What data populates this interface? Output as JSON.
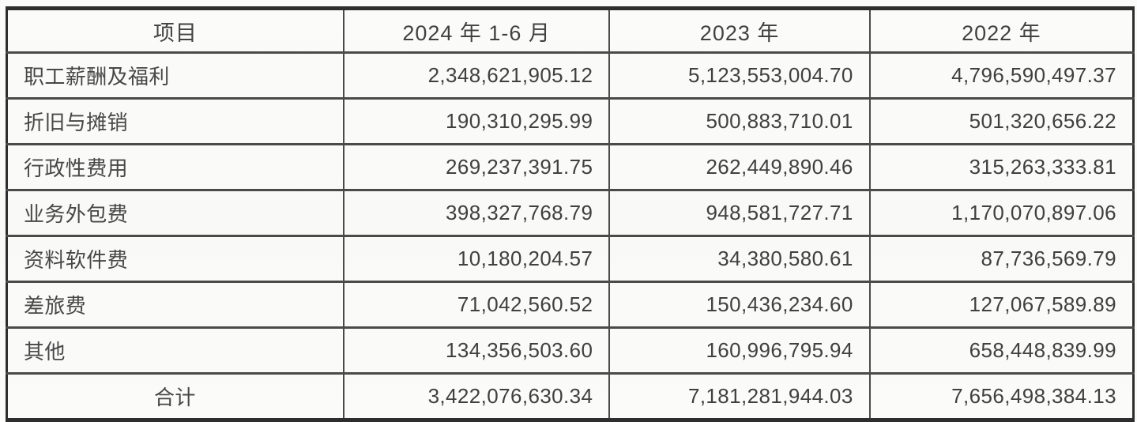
{
  "table": {
    "columns": [
      "项目",
      "2024 年 1-6 月",
      "2023 年",
      "2022 年"
    ],
    "rows": [
      {
        "item": "职工薪酬及福利",
        "v2024": "2,348,621,905.12",
        "v2023": "5,123,553,004.70",
        "v2022": "4,796,590,497.37"
      },
      {
        "item": "折旧与摊销",
        "v2024": "190,310,295.99",
        "v2023": "500,883,710.01",
        "v2022": "501,320,656.22"
      },
      {
        "item": "行政性费用",
        "v2024": "269,237,391.75",
        "v2023": "262,449,890.46",
        "v2022": "315,263,333.81"
      },
      {
        "item": "业务外包费",
        "v2024": "398,327,768.79",
        "v2023": "948,581,727.71",
        "v2022": "1,170,070,897.06"
      },
      {
        "item": "资料软件费",
        "v2024": "10,180,204.57",
        "v2023": "34,380,580.61",
        "v2022": "87,736,569.79"
      },
      {
        "item": "差旅费",
        "v2024": "71,042,560.52",
        "v2023": "150,436,234.60",
        "v2022": "127,067,589.89"
      },
      {
        "item": "其他",
        "v2024": "134,356,503.60",
        "v2023": "160,996,795.94",
        "v2022": "658,448,839.99"
      },
      {
        "item": "合计",
        "v2024": "3,422,076,630.34",
        "v2023": "7,181,281,944.03",
        "v2022": "7,656,498,384.13"
      }
    ]
  }
}
